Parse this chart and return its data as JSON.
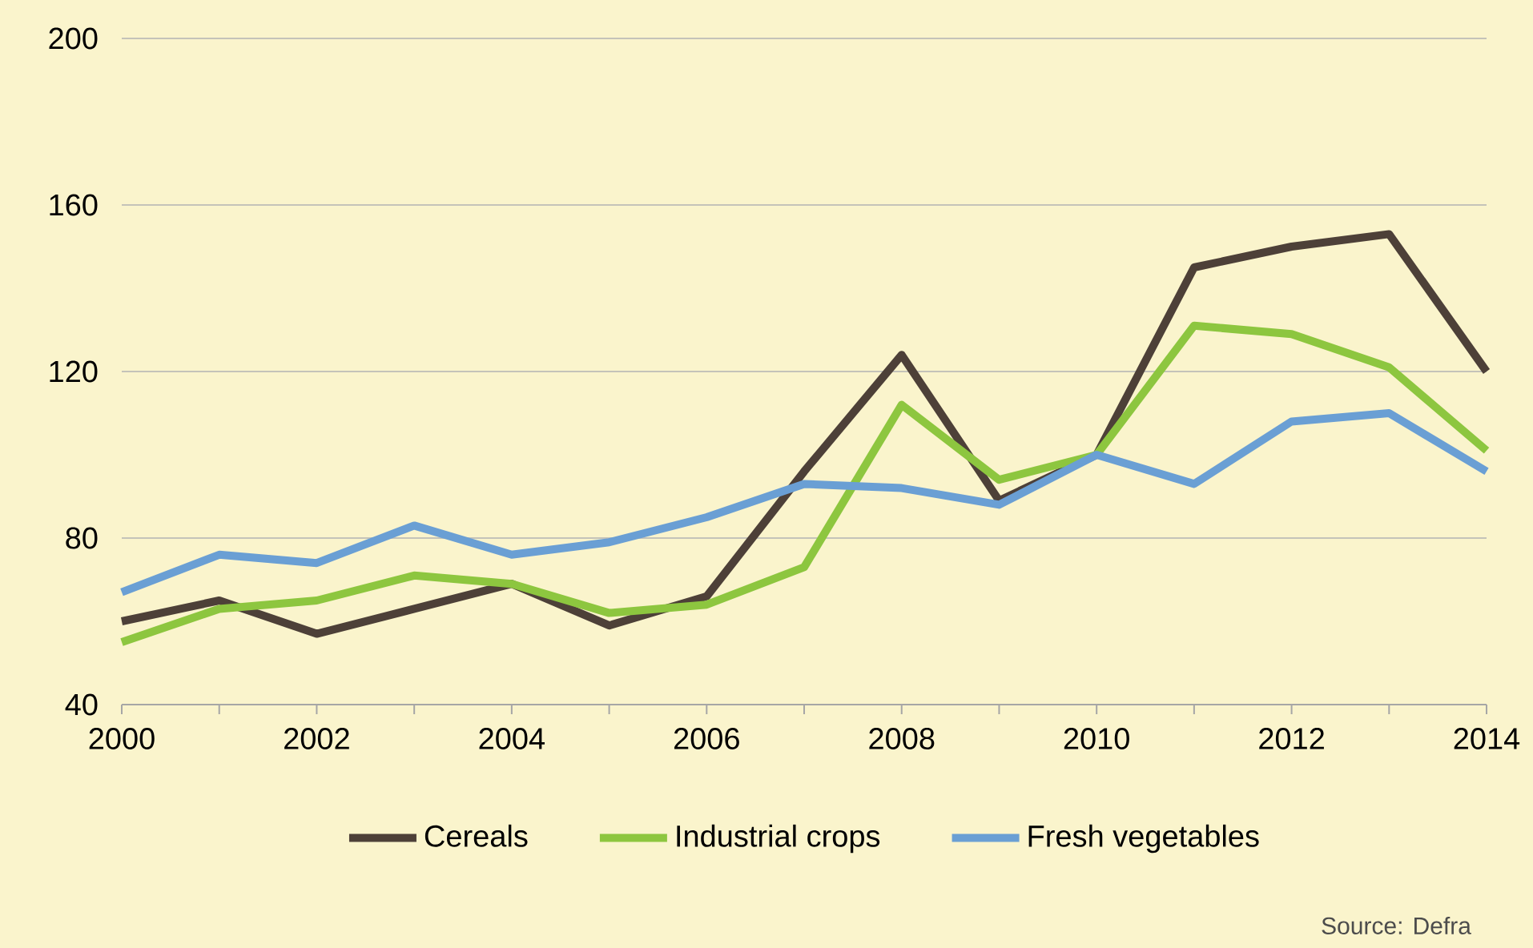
{
  "chart_data": {
    "type": "line",
    "x": [
      2000,
      2001,
      2002,
      2003,
      2004,
      2005,
      2006,
      2007,
      2008,
      2009,
      2010,
      2011,
      2012,
      2013,
      2014
    ],
    "series": [
      {
        "name": "Cereals",
        "color": "#4d4038",
        "values": [
          60,
          65,
          57,
          63,
          69,
          59,
          66,
          96,
          124,
          89,
          100,
          145,
          150,
          153,
          120
        ]
      },
      {
        "name": "Industrial crops",
        "color": "#8dc63f",
        "values": [
          55,
          63,
          65,
          71,
          69,
          62,
          64,
          73,
          112,
          94,
          100,
          131,
          129,
          121,
          101
        ]
      },
      {
        "name": "Fresh vegetables",
        "color": "#6a9fd4",
        "values": [
          67,
          76,
          74,
          83,
          76,
          79,
          85,
          93,
          92,
          88,
          100,
          93,
          108,
          110,
          96
        ]
      }
    ],
    "xlim": [
      2000,
      2014
    ],
    "xticks": [
      2000,
      {
        "value": 2001,
        "label": null
      },
      2002,
      {
        "value": 2003,
        "label": null
      },
      2004,
      {
        "value": 2005,
        "label": null
      },
      2006,
      {
        "value": 2007,
        "label": null
      },
      2008,
      {
        "value": 2009,
        "label": null
      },
      2010,
      {
        "value": 2011,
        "label": null
      },
      2012,
      {
        "value": 2013,
        "label": null
      },
      2014
    ],
    "ylim": [
      40,
      200
    ],
    "yticks": [
      40,
      80,
      120,
      160,
      200
    ],
    "grid": "y",
    "legend": "bottom",
    "marker": "none",
    "line_style": "solid",
    "annotations": [
      "Source: Defra"
    ]
  }
}
